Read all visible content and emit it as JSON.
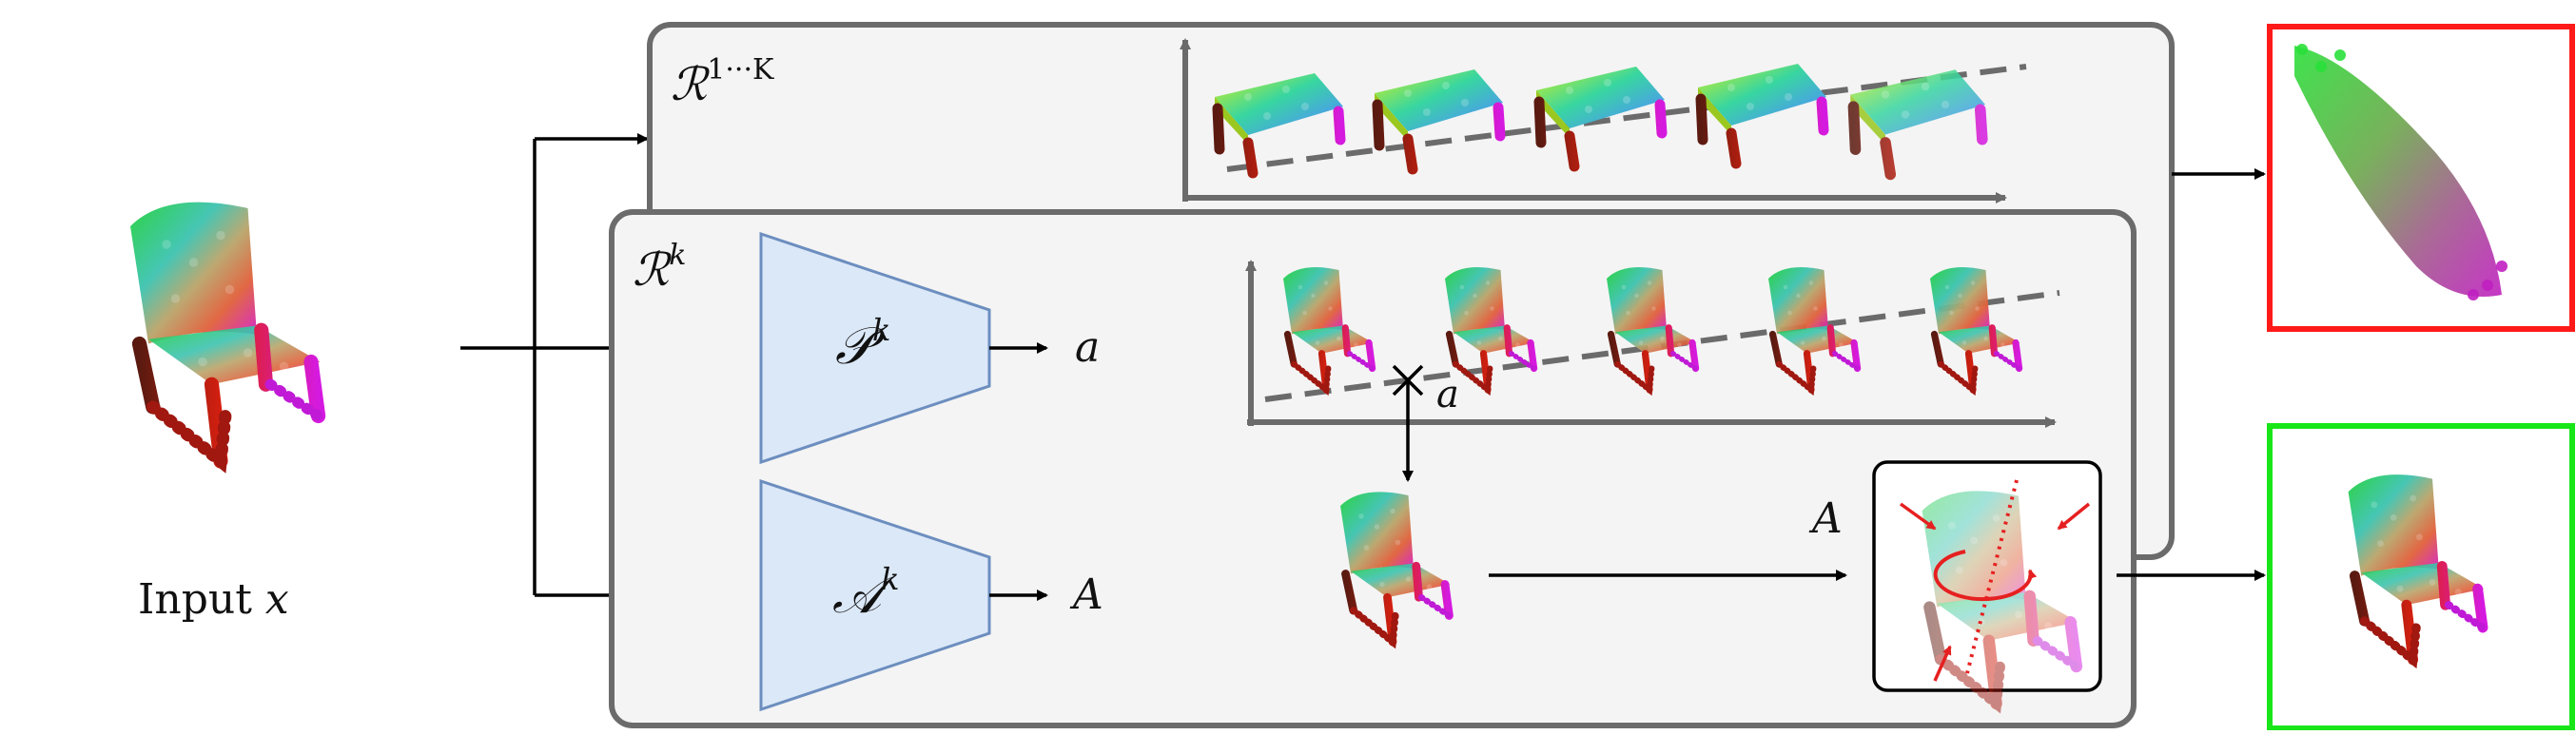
{
  "labels": {
    "input": "Input x",
    "ensemble": "R^{1···K}",
    "single": "R^k",
    "pose_net": "P^k",
    "amb_net": "A^k",
    "pose_out": "a",
    "amb_out": "A",
    "selected_pose": "a",
    "amb_into_box": "A"
  },
  "colors": {
    "panel_fill": "#f4f4f4",
    "panel_stroke": "#6b6b6b",
    "net_fill": "#dbe8f8",
    "net_stroke": "#6c8ebf",
    "wrong_frame": "#ff1a1a",
    "right_frame": "#19e619",
    "accent_red": "#e62020"
  },
  "icons": [
    "pointcloud-chair-icon",
    "pointcloud-table-icon",
    "symmetry-rotation-icon",
    "cross-marker-icon"
  ]
}
